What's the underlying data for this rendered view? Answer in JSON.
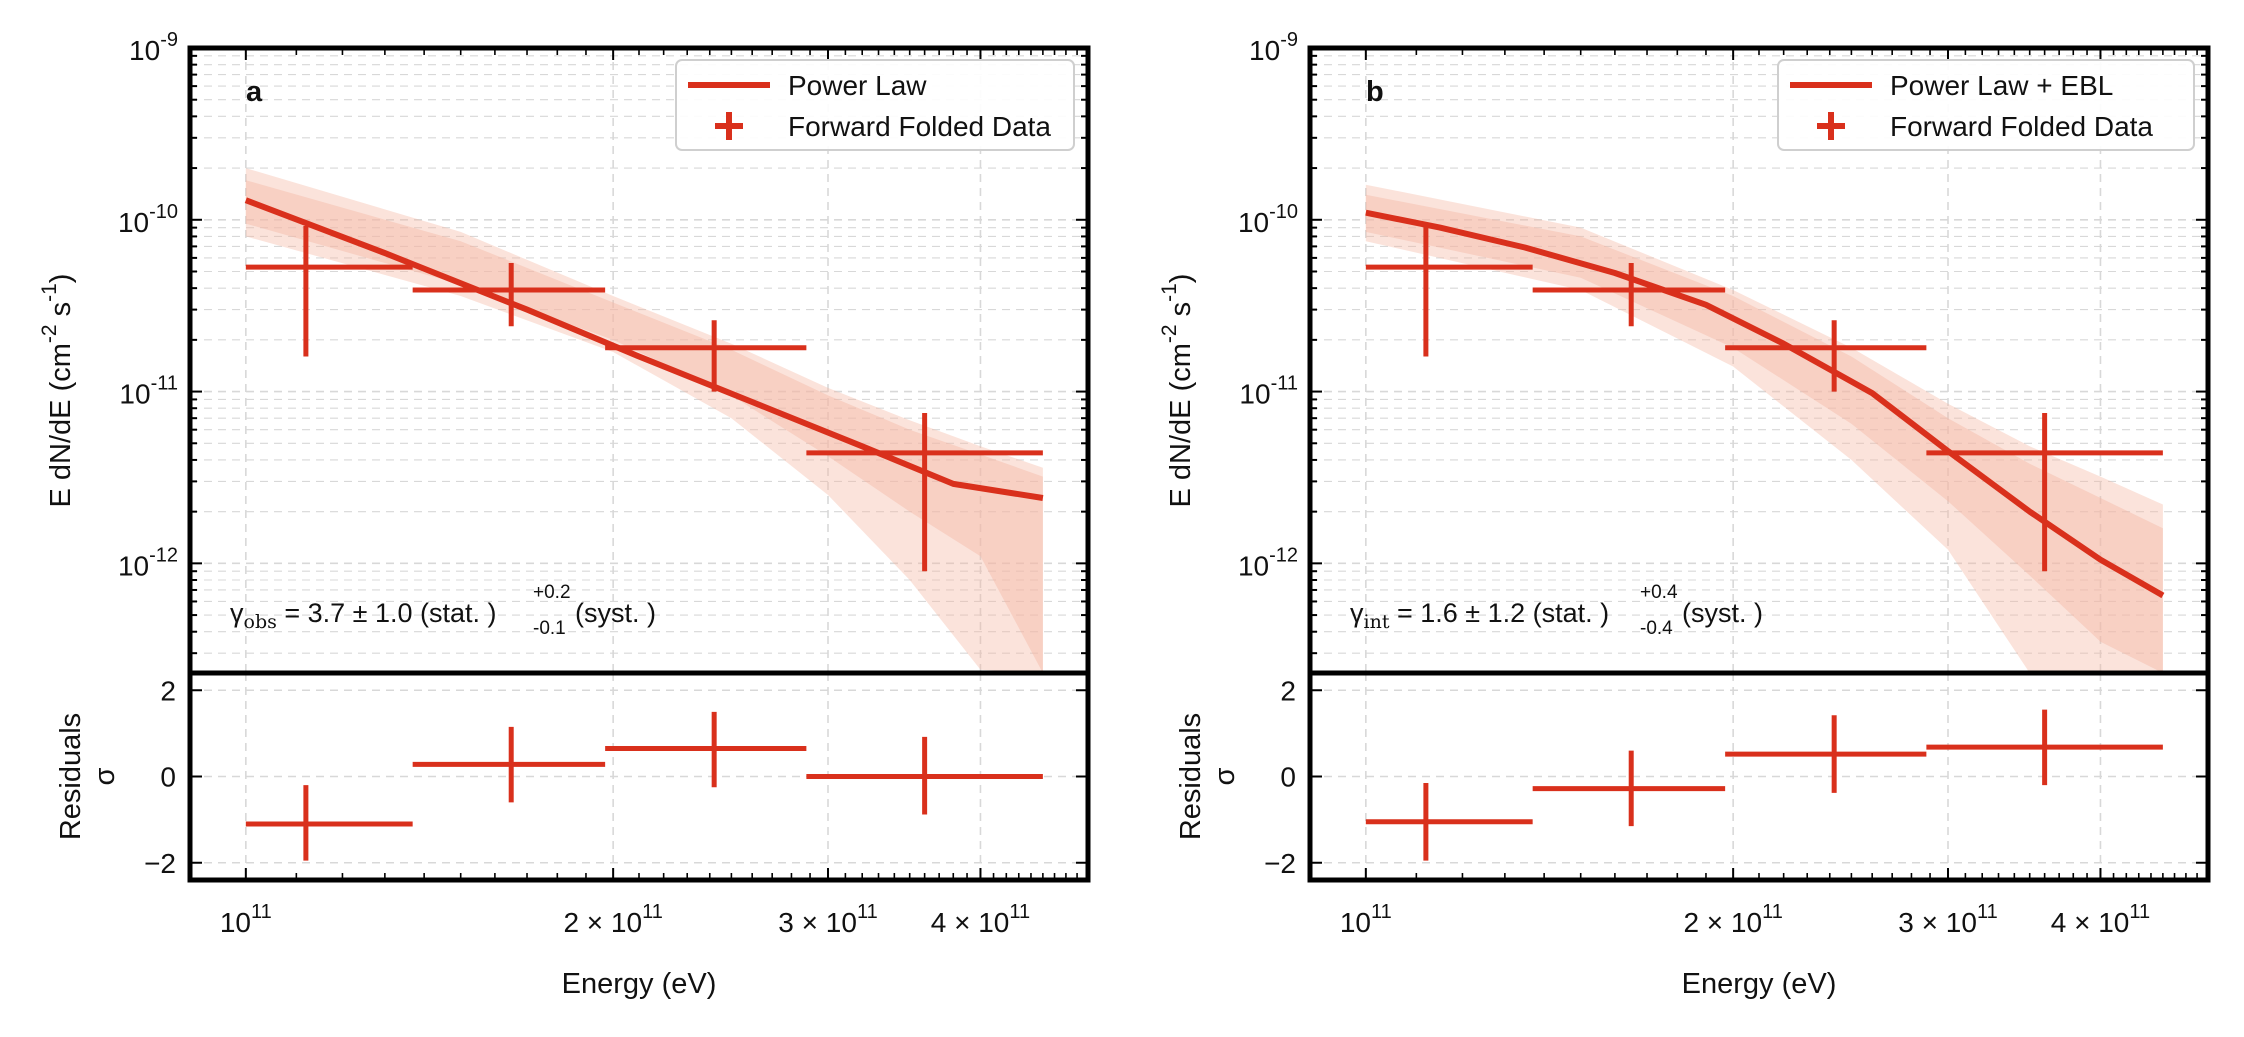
{
  "figure": {
    "xlabel": "Energy (eV)",
    "ylabel": "E dN/dE (cm⁻² s⁻¹)",
    "ylabel_parts": [
      "E dN/dE (cm",
      "-2",
      " s",
      "-1",
      ")"
    ],
    "residual_ylabel": "Residuals",
    "residual_ylabel_symbol": "σ",
    "colors": {
      "model": "#d9301c",
      "band": "#f4b9a6",
      "grid": "#d8d8d8",
      "axis": "#000000"
    }
  },
  "chart_data": [
    {
      "type": "line",
      "panel_label": "a",
      "title": "",
      "xlabel": "Energy (eV)",
      "ylabel": "E dN/dE (cm^-2 s^-1)",
      "xscale": "log",
      "yscale": "log",
      "xlim": [
        90000000000.0,
        490000000000.0
      ],
      "ylim": [
        2.3e-13,
        1e-09
      ],
      "x_ticks": [
        {
          "value": 100000000000.0,
          "mantissa": "",
          "base": "10",
          "exp": "11"
        },
        {
          "value": 200000000000.0,
          "mantissa": "2 × ",
          "base": "10",
          "exp": "11"
        },
        {
          "value": 300000000000.0,
          "mantissa": "3 × ",
          "base": "10",
          "exp": "11"
        },
        {
          "value": 400000000000.0,
          "mantissa": "4 × ",
          "base": "10",
          "exp": "11"
        }
      ],
      "y_ticks": [
        {
          "value": 1e-09,
          "base": "10",
          "exp": "-9"
        },
        {
          "value": 1e-10,
          "base": "10",
          "exp": "-10"
        },
        {
          "value": 1e-11,
          "base": "10",
          "exp": "-11"
        },
        {
          "value": 1e-12,
          "base": "10",
          "exp": "-12"
        }
      ],
      "legend": {
        "location": "upper right",
        "model_label": "Power Law",
        "data_label": "Forward Folded Data"
      },
      "annotation": {
        "symbol": "γ",
        "subscript": "obs",
        "text": " = 3.7 ± 1.0 (stat. )",
        "sup": "+0.2",
        "sub": "-0.1",
        "tail": " (syst. )"
      },
      "model": {
        "name": "Power Law",
        "x": [
          100000000000.0,
          130000000000.0,
          170000000000.0,
          210000000000.0,
          260000000000.0,
          320000000000.0,
          380000000000.0,
          450000000000.0
        ],
        "y": [
          1.3e-10,
          6.4e-11,
          3e-11,
          1.6e-11,
          8.7e-12,
          4.8e-12,
          2.9e-12,
          2.4e-12
        ]
      },
      "band_outer": {
        "x": [
          100000000000.0,
          150000000000.0,
          200000000000.0,
          250000000000.0,
          300000000000.0,
          350000000000.0,
          400000000000.0,
          450000000000.0
        ],
        "upper": [
          2e-10,
          8.5e-11,
          3.6e-11,
          1.9e-11,
          1.05e-11,
          6.8e-12,
          4.8e-12,
          3.6e-12
        ],
        "lower": [
          8e-11,
          3.6e-11,
          1.7e-11,
          7e-12,
          2.5e-12,
          8e-13,
          2.4e-13,
          2.3e-13
        ]
      },
      "band_inner": {
        "x": [
          100000000000.0,
          150000000000.0,
          200000000000.0,
          250000000000.0,
          300000000000.0,
          350000000000.0,
          400000000000.0,
          450000000000.0
        ],
        "upper": [
          1.7e-10,
          7.5e-11,
          3.3e-11,
          1.75e-11,
          9.5e-12,
          6e-12,
          4.3e-12,
          3.2e-12
        ],
        "lower": [
          9.5e-11,
          4.2e-11,
          2e-11,
          9.5e-12,
          4.2e-12,
          2e-12,
          1.1e-12,
          2.3e-13
        ]
      },
      "data_points": [
        {
          "x": 112000000000.0,
          "x_low": 100000000000.0,
          "x_high": 137000000000.0,
          "y": 5.3e-11,
          "y_low": 1.6e-11,
          "y_high": 9.2e-11
        },
        {
          "x": 165000000000.0,
          "x_low": 137000000000.0,
          "x_high": 197000000000.0,
          "y": 3.9e-11,
          "y_low": 2.4e-11,
          "y_high": 5.6e-11
        },
        {
          "x": 242000000000.0,
          "x_low": 197000000000.0,
          "x_high": 288000000000.0,
          "y": 1.8e-11,
          "y_low": 1e-11,
          "y_high": 2.6e-11
        },
        {
          "x": 360000000000.0,
          "x_low": 288000000000.0,
          "x_high": 450000000000.0,
          "y": 4.4e-12,
          "y_low": 9e-13,
          "y_high": 7.5e-12
        }
      ],
      "residuals": {
        "ylim": [
          -2.4,
          2.4
        ],
        "y_ticks": [
          2,
          0,
          -2
        ],
        "y_tick_labels": [
          "2",
          "0",
          "−2"
        ],
        "points": [
          {
            "x": 112000000000.0,
            "x_low": 100000000000.0,
            "x_high": 137000000000.0,
            "y": -1.1,
            "y_low": -1.95,
            "y_high": -0.2
          },
          {
            "x": 165000000000.0,
            "x_low": 137000000000.0,
            "x_high": 197000000000.0,
            "y": 0.28,
            "y_low": -0.6,
            "y_high": 1.15
          },
          {
            "x": 242000000000.0,
            "x_low": 197000000000.0,
            "x_high": 288000000000.0,
            "y": 0.65,
            "y_low": -0.25,
            "y_high": 1.5
          },
          {
            "x": 360000000000.0,
            "x_low": 288000000000.0,
            "x_high": 450000000000.0,
            "y": 0.0,
            "y_low": -0.88,
            "y_high": 0.92
          }
        ]
      }
    },
    {
      "type": "line",
      "panel_label": "b",
      "title": "",
      "xlabel": "Energy (eV)",
      "ylabel": "E dN/dE (cm^-2 s^-1)",
      "xscale": "log",
      "yscale": "log",
      "xlim": [
        90000000000.0,
        490000000000.0
      ],
      "ylim": [
        2.3e-13,
        1e-09
      ],
      "x_ticks": [
        {
          "value": 100000000000.0,
          "mantissa": "",
          "base": "10",
          "exp": "11"
        },
        {
          "value": 200000000000.0,
          "mantissa": "2 × ",
          "base": "10",
          "exp": "11"
        },
        {
          "value": 300000000000.0,
          "mantissa": "3 × ",
          "base": "10",
          "exp": "11"
        },
        {
          "value": 400000000000.0,
          "mantissa": "4 × ",
          "base": "10",
          "exp": "11"
        }
      ],
      "y_ticks": [
        {
          "value": 1e-09,
          "base": "10",
          "exp": "-9"
        },
        {
          "value": 1e-10,
          "base": "10",
          "exp": "-10"
        },
        {
          "value": 1e-11,
          "base": "10",
          "exp": "-11"
        },
        {
          "value": 1e-12,
          "base": "10",
          "exp": "-12"
        }
      ],
      "legend": {
        "location": "upper right",
        "model_label": "Power Law + EBL",
        "data_label": "Forward Folded Data"
      },
      "annotation": {
        "symbol": "γ",
        "subscript": "int",
        "text": " = 1.6 ± 1.2 (stat. )",
        "sup": "+0.4",
        "sub": "-0.4",
        "tail": " (syst. )"
      },
      "model": {
        "name": "Power Law + EBL",
        "x": [
          100000000000.0,
          115000000000.0,
          135000000000.0,
          160000000000.0,
          190000000000.0,
          220000000000.0,
          260000000000.0,
          300000000000.0,
          350000000000.0,
          400000000000.0,
          450000000000.0
        ],
        "y": [
          1.1e-10,
          9e-11,
          6.9e-11,
          4.9e-11,
          3.2e-11,
          1.9e-11,
          9.8e-12,
          4.5e-12,
          2e-12,
          1.05e-12,
          6.5e-13
        ]
      },
      "band_outer": {
        "x": [
          100000000000.0,
          150000000000.0,
          200000000000.0,
          250000000000.0,
          300000000000.0,
          350000000000.0,
          400000000000.0,
          450000000000.0
        ],
        "upper": [
          1.6e-10,
          9e-11,
          3.9e-11,
          1.8e-11,
          8.5e-12,
          4.8e-12,
          3.2e-12,
          2.2e-12
        ],
        "lower": [
          7.5e-11,
          3.9e-11,
          1.4e-11,
          4e-12,
          1.2e-12,
          2.3e-13,
          2.3e-13,
          2.3e-13
        ]
      },
      "band_inner": {
        "x": [
          100000000000.0,
          150000000000.0,
          200000000000.0,
          250000000000.0,
          300000000000.0,
          350000000000.0,
          400000000000.0,
          450000000000.0
        ],
        "upper": [
          1.4e-10,
          8e-11,
          3.6e-11,
          1.6e-11,
          7e-12,
          3.8e-12,
          2.4e-12,
          1.6e-12
        ],
        "lower": [
          8.5e-11,
          4.6e-11,
          1.8e-11,
          6.5e-12,
          2.3e-12,
          8.5e-13,
          3.5e-13,
          2.3e-13
        ]
      },
      "data_points": [
        {
          "x": 112000000000.0,
          "x_low": 100000000000.0,
          "x_high": 137000000000.0,
          "y": 5.3e-11,
          "y_low": 1.6e-11,
          "y_high": 9.2e-11
        },
        {
          "x": 165000000000.0,
          "x_low": 137000000000.0,
          "x_high": 197000000000.0,
          "y": 3.9e-11,
          "y_low": 2.4e-11,
          "y_high": 5.6e-11
        },
        {
          "x": 242000000000.0,
          "x_low": 197000000000.0,
          "x_high": 288000000000.0,
          "y": 1.8e-11,
          "y_low": 1e-11,
          "y_high": 2.6e-11
        },
        {
          "x": 360000000000.0,
          "x_low": 288000000000.0,
          "x_high": 450000000000.0,
          "y": 4.4e-12,
          "y_low": 9e-13,
          "y_high": 7.5e-12
        }
      ],
      "residuals": {
        "ylim": [
          -2.4,
          2.4
        ],
        "y_ticks": [
          2,
          0,
          -2
        ],
        "y_tick_labels": [
          "2",
          "0",
          "−2"
        ],
        "points": [
          {
            "x": 112000000000.0,
            "x_low": 100000000000.0,
            "x_high": 137000000000.0,
            "y": -1.05,
            "y_low": -1.95,
            "y_high": -0.15
          },
          {
            "x": 165000000000.0,
            "x_low": 137000000000.0,
            "x_high": 197000000000.0,
            "y": -0.28,
            "y_low": -1.15,
            "y_high": 0.6
          },
          {
            "x": 242000000000.0,
            "x_low": 197000000000.0,
            "x_high": 288000000000.0,
            "y": 0.52,
            "y_low": -0.38,
            "y_high": 1.42
          },
          {
            "x": 360000000000.0,
            "x_low": 288000000000.0,
            "x_high": 450000000000.0,
            "y": 0.68,
            "y_low": -0.2,
            "y_high": 1.55
          }
        ]
      }
    }
  ]
}
